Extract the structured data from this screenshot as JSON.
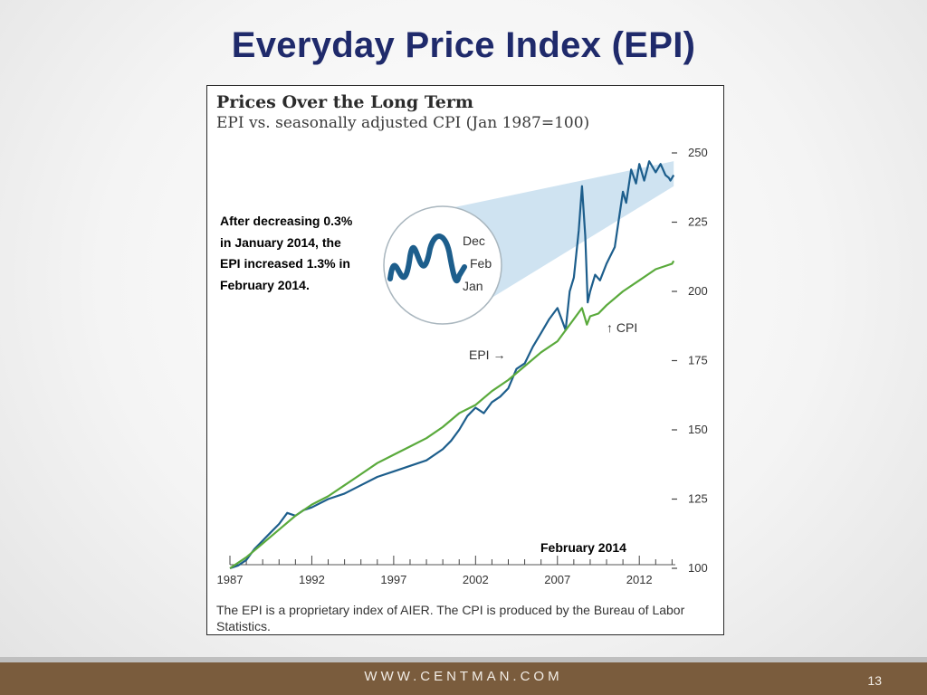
{
  "slide": {
    "title": "Everyday Price Index (EPI)",
    "footer_url": "WWW.CENTMAN.COM",
    "page_number": "13"
  },
  "figure": {
    "callout": "After decreasing 0.3% in January 2014, the EPI increased 1.3% in February 2014.",
    "date_label": "February 2014",
    "note": "The EPI is a proprietary index of AIER. The CPI is produced by the Bureau of Labor Statistics."
  },
  "chart_data": {
    "type": "line",
    "title": "Prices Over the Long Term",
    "subtitle": "EPI vs. seasonally adjusted CPI (Jan 1987=100)",
    "xlim": [
      1987,
      2014.2
    ],
    "ylim": [
      100,
      250
    ],
    "x_ticks": [
      "1987",
      "1992",
      "1997",
      "2002",
      "2007",
      "2012"
    ],
    "y_ticks": [
      "100",
      "125",
      "150",
      "175",
      "200",
      "225",
      "250"
    ],
    "grid": false,
    "series": [
      {
        "name": "EPI",
        "color": "#1d5e8c",
        "x": [
          1987,
          1987.5,
          1988,
          1988.5,
          1989,
          1989.5,
          1990,
          1990.5,
          1991,
          1991.5,
          1992,
          1993,
          1994,
          1995,
          1996,
          1997,
          1998,
          1999,
          2000,
          2000.5,
          2001,
          2001.5,
          2002,
          2002.5,
          2003,
          2003.5,
          2004,
          2004.5,
          2005,
          2005.5,
          2006,
          2006.5,
          2007,
          2007.5,
          2007.75,
          2008,
          2008.3,
          2008.5,
          2008.7,
          2008.85,
          2009,
          2009.3,
          2009.6,
          2010,
          2010.5,
          2011,
          2011.2,
          2011.5,
          2011.8,
          2012,
          2012.3,
          2012.6,
          2013,
          2013.3,
          2013.6,
          2013.8,
          2013.9,
          2014,
          2014.1
        ],
        "y": [
          100,
          101,
          103,
          107,
          110,
          113,
          116,
          120,
          119,
          121,
          122,
          125,
          127,
          130,
          133,
          135,
          137,
          139,
          143,
          146,
          150,
          155,
          158,
          156,
          160,
          162,
          165,
          172,
          174,
          180,
          185,
          190,
          194,
          186,
          200,
          205,
          222,
          238,
          220,
          196,
          200,
          206,
          204,
          210,
          216,
          236,
          232,
          244,
          239,
          246,
          240,
          247,
          243,
          246,
          242,
          241,
          240,
          241,
          242
        ]
      },
      {
        "name": "CPI",
        "color": "#5aaa3c",
        "x": [
          1987,
          1988,
          1989,
          1990,
          1991,
          1992,
          1993,
          1994,
          1995,
          1996,
          1997,
          1998,
          1999,
          2000,
          2001,
          2002,
          2003,
          2004,
          2005,
          2006,
          2007,
          2008,
          2008.5,
          2008.8,
          2009,
          2009.5,
          2010,
          2011,
          2012,
          2013,
          2013.5,
          2014,
          2014.1
        ],
        "y": [
          100,
          104,
          109,
          114,
          119,
          123,
          126,
          130,
          134,
          138,
          141,
          144,
          147,
          151,
          156,
          159,
          164,
          168,
          173,
          178,
          182,
          190,
          194,
          188,
          191,
          192,
          195,
          200,
          204,
          208,
          209,
          210,
          211
        ]
      }
    ],
    "annotations": {
      "epi_label": "EPI →",
      "cpi_label": "↑ CPI",
      "inset_labels": [
        "Dec",
        "Feb",
        "Jan"
      ]
    }
  }
}
